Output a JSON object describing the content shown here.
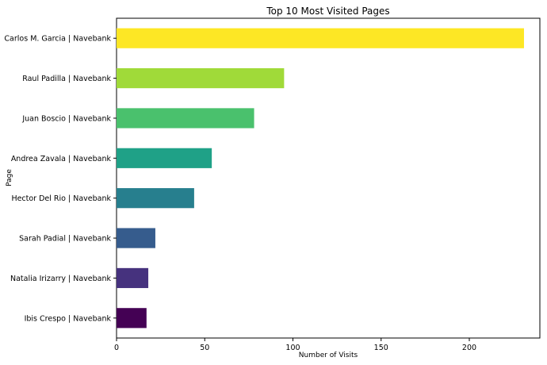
{
  "chart_data": {
    "type": "bar",
    "orientation": "horizontal",
    "title": "Top 10 Most Visited Pages",
    "xlabel": "Number of Visits",
    "ylabel": "Page",
    "xlim": [
      0,
      240
    ],
    "xticks": [
      0,
      50,
      100,
      150,
      200
    ],
    "grid": false,
    "categories": [
      "Carlos M. Garcia | Navebank",
      "Raul Padilla | Navebank",
      "Juan Boscio | Navebank",
      "Andrea Zavala | Navebank",
      "Hector Del Rio | Navebank",
      "Sarah Padial | Navebank",
      "Natalia Irizarry | Navebank",
      "Ibis Crespo | Navebank"
    ],
    "values": [
      231,
      95,
      78,
      54,
      44,
      22,
      18,
      17
    ],
    "colors": [
      "#fde725",
      "#a0da39",
      "#4ac16d",
      "#1fa187",
      "#277f8e",
      "#365c8d",
      "#46327e",
      "#440154"
    ]
  }
}
